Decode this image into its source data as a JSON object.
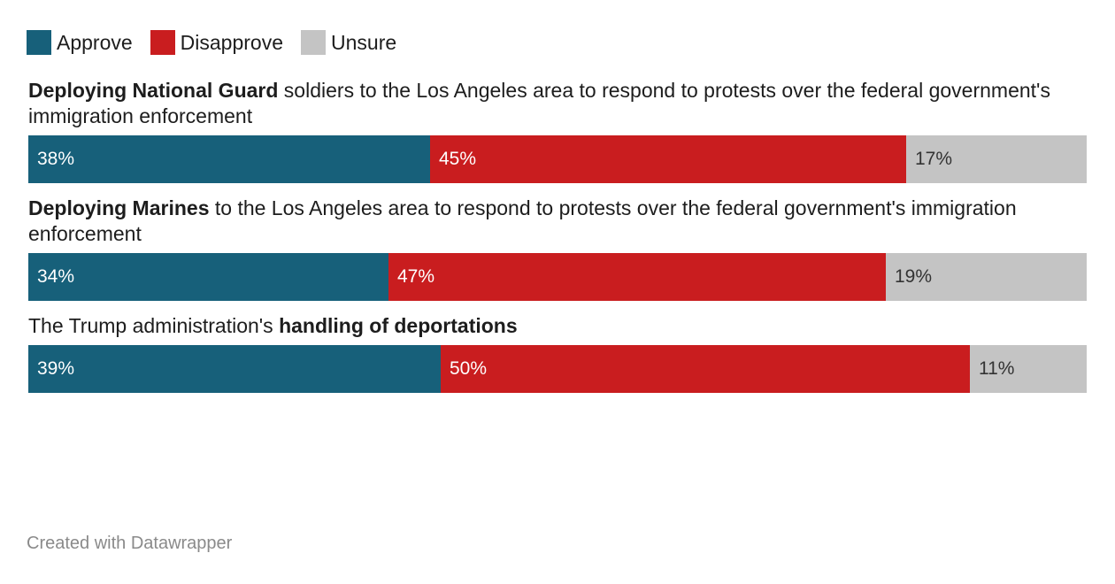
{
  "chart_data": {
    "type": "bar",
    "orientation": "horizontal",
    "stacked": true,
    "legend_position": "top-left",
    "series": [
      {
        "name": "Approve",
        "color": "#17607a"
      },
      {
        "name": "Disapprove",
        "color": "#c91d1f"
      },
      {
        "name": "Unsure",
        "color": "#c4c4c4"
      }
    ],
    "rows": [
      {
        "title_bold": "Deploying National Guard",
        "title_rest": " soldiers to the Los Angeles area to respond to protests over the federal government's immigration enforcement",
        "title_before": "",
        "values": [
          38,
          45,
          17
        ],
        "labels": [
          "38%",
          "45%",
          "17%"
        ]
      },
      {
        "title_bold": "Deploying Marines",
        "title_rest": " to the Los Angeles area to respond to protests over the federal government's immigration enforcement",
        "title_before": "",
        "values": [
          34,
          47,
          19
        ],
        "labels": [
          "34%",
          "47%",
          "19%"
        ]
      },
      {
        "title_before": "The Trump administration's ",
        "title_bold": "handling of deportations",
        "title_rest": "",
        "values": [
          39,
          50,
          11
        ],
        "labels": [
          "39%",
          "50%",
          "11%"
        ]
      }
    ]
  },
  "footer": "Created with Datawrapper"
}
